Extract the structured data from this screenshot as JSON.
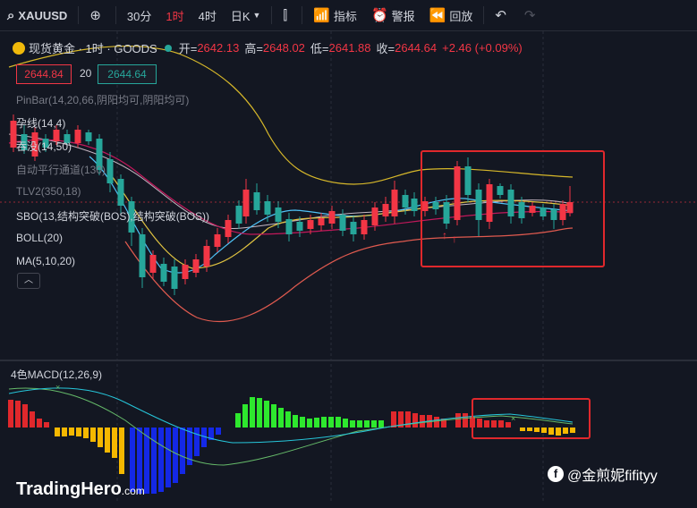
{
  "toolbar": {
    "symbol": "XAUUSD",
    "add_icon": "plus-circle-icon",
    "intervals": [
      "30分",
      "1时",
      "4时"
    ],
    "chart_type": "日K",
    "indicators_label": "指标",
    "alerts_label": "警报",
    "replay_label": "回放"
  },
  "legend": {
    "title": "现货黄金 · 1时 · GOODS",
    "open_label": "开=",
    "open": "2642.13",
    "high_label": "高=",
    "high": "2648.02",
    "low_label": "低=",
    "low": "2641.88",
    "close_label": "收=",
    "close": "2644.64",
    "change": "+2.46 (+0.09%)"
  },
  "price_boxes": {
    "bid": "2644.84",
    "spread": "20",
    "ask": "2644.64"
  },
  "indicators": [
    "PinBar(14,20,66,阴阳均可,阴阳均可)",
    "孕线(14,4)",
    "吞没(14,50)",
    "自动平行通道(130)",
    "TLV2(350,18)",
    "SBO(13,结构突破(BOS),结构突破(BOS))",
    "BOLL(20)",
    "MA(5,10,20)"
  ],
  "macd": {
    "label": "4色MACD(12,26,9)"
  },
  "branding": {
    "logo_main": "TradingHero",
    "logo_suffix": ".com",
    "watermark": "@金煎妮fifityy"
  },
  "colors": {
    "up": "#f23645",
    "down": "#26a69a",
    "background": "#131722",
    "highlight_box": "#e0282c"
  }
}
